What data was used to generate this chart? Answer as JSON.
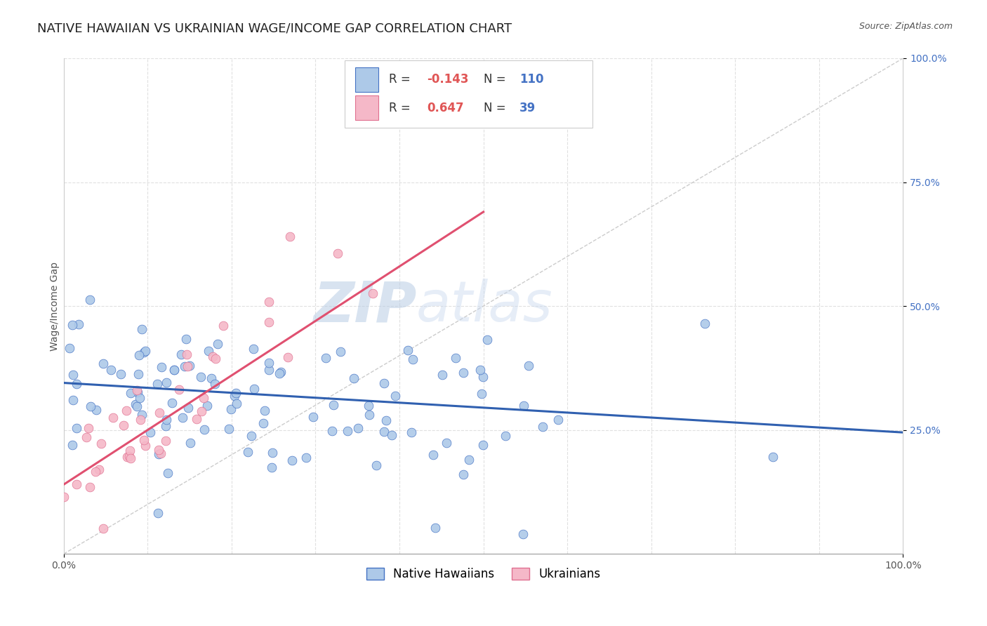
{
  "title": "NATIVE HAWAIIAN VS UKRAINIAN WAGE/INCOME GAP CORRELATION CHART",
  "source_text": "Source: ZipAtlas.com",
  "ylabel": "Wage/Income Gap",
  "xlim": [
    0.0,
    1.0
  ],
  "ylim": [
    0.0,
    1.0
  ],
  "ytick_labels": [
    "25.0%",
    "50.0%",
    "75.0%",
    "100.0%"
  ],
  "ytick_positions": [
    0.25,
    0.5,
    0.75,
    1.0
  ],
  "blue_fill": "#adc9e8",
  "pink_fill": "#f5b8c8",
  "blue_edge": "#4472c4",
  "pink_edge": "#e07090",
  "blue_line": "#3060b0",
  "pink_line": "#e05070",
  "diag_color": "#cccccc",
  "R_blue": -0.143,
  "N_blue": 110,
  "R_pink": 0.647,
  "N_pink": 39,
  "watermark": "ZIPatlas",
  "background_color": "#ffffff",
  "grid_color": "#e0e0e0",
  "title_fontsize": 13,
  "axis_label_fontsize": 10,
  "tick_fontsize": 10,
  "legend_fontsize": 12,
  "blue_label": "Native Hawaiians",
  "pink_label": "Ukrainians",
  "blue_R_color": "#e05555",
  "blue_N_color": "#4472c4",
  "legend_R_color": "#e05555",
  "legend_N_color": "#4472c4"
}
